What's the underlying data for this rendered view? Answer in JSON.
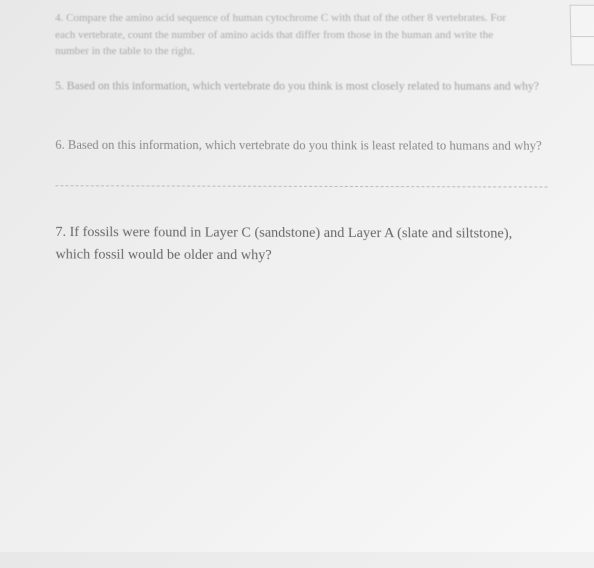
{
  "questions": {
    "q4": {
      "number": "4.",
      "text": "Compare the amino acid sequence of human cytochrome C with that of the other 8 vertebrates. For each vertebrate, count the number of amino acids that differ from those in the human and write the number in the table to the right."
    },
    "q5": {
      "number": "5.",
      "text": "Based on this information, which vertebrate do you think is most closely related to humans and why?"
    },
    "q6": {
      "number": "6.",
      "text": "Based on this information, which vertebrate do you think is least related to humans and why?"
    },
    "q7": {
      "number": "7.",
      "text": "If fossils were found in Layer C (sandstone) and Layer A (slate and siltstone), which fossil would be older and why?"
    }
  },
  "styling": {
    "background_gradient_start": "#e8e8e8",
    "background_gradient_end": "#f8f8f8",
    "text_color_faded": "#aaa",
    "text_color_medium": "#888",
    "text_color_clear": "#666",
    "divider_color": "#bbb",
    "font_family": "Georgia, Times New Roman, serif",
    "q4_fontsize": 11,
    "q5_fontsize": 11.5,
    "q6_fontsize": 12.5,
    "q7_fontsize": 14
  }
}
